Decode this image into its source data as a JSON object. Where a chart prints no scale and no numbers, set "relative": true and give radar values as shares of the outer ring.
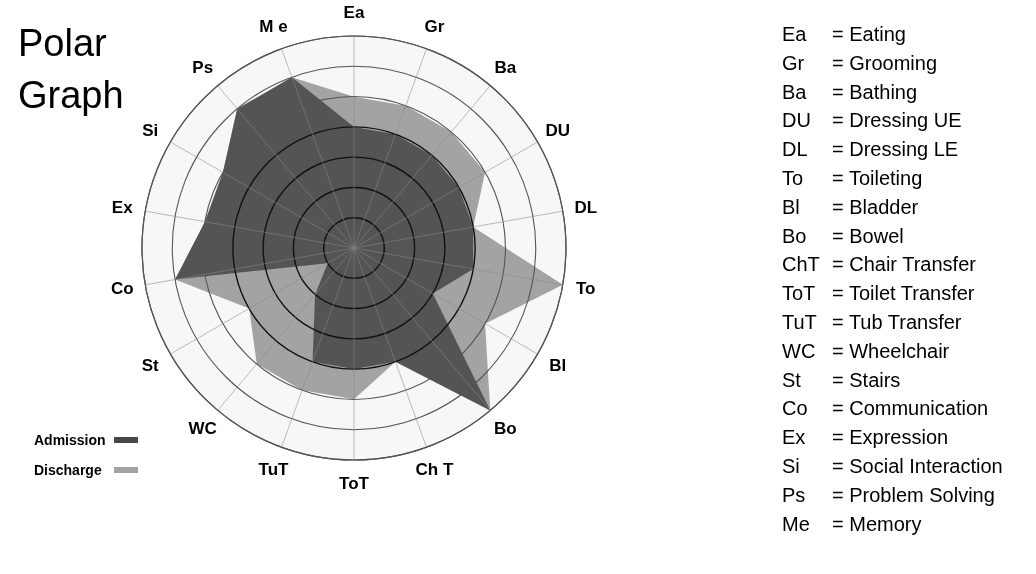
{
  "chart_data": {
    "type": "radar",
    "title": "Polar Graph",
    "relative": true,
    "grid": true,
    "legend": "bottom left",
    "categories": [
      "Ea",
      "Gr",
      "Ba",
      "DU",
      "DL",
      "To",
      "Bl",
      "Bo",
      "Ch T",
      "ToT",
      "TuT",
      "WC",
      "St",
      "Co",
      "Ex",
      "Si",
      "Ps",
      "M e"
    ],
    "series": [
      {
        "name": "Discharge",
        "color": "#a3a3a3",
        "values": [
          0.714,
          0.714,
          0.714,
          0.714,
          0.571,
          1,
          0.714,
          1,
          0.571,
          0.714,
          0.714,
          0.714,
          0.571,
          0.857,
          0.714,
          0.714,
          0.857,
          0.857
        ]
      },
      {
        "name": "Admission",
        "color": "#474747",
        "values": [
          0.571,
          0.571,
          0.571,
          0.571,
          0.571,
          0.571,
          0.429,
          1,
          0.571,
          0.571,
          0.571,
          0.286,
          0.143,
          0.857,
          0.714,
          0.714,
          0.857,
          0.857
        ]
      }
    ],
    "annotations": [
      "Ea = Eating",
      "Gr = Grooming",
      "Ba = Bathing",
      "DU = Dressing UE",
      "DL = Dressing LE",
      "To = Toileting",
      "Bl = Bladder",
      "Bo = Bowel",
      "ChT = Chair Transfer",
      "ToT = Toilet Transfer",
      "TuT = Tub Transfer",
      "WC = Wheelchair",
      "St = Stairs",
      "Co = Communication",
      "Ex = Expression",
      "Si = Social Interaction",
      "Ps = Problem Solving",
      "Me = Memory"
    ]
  }
}
